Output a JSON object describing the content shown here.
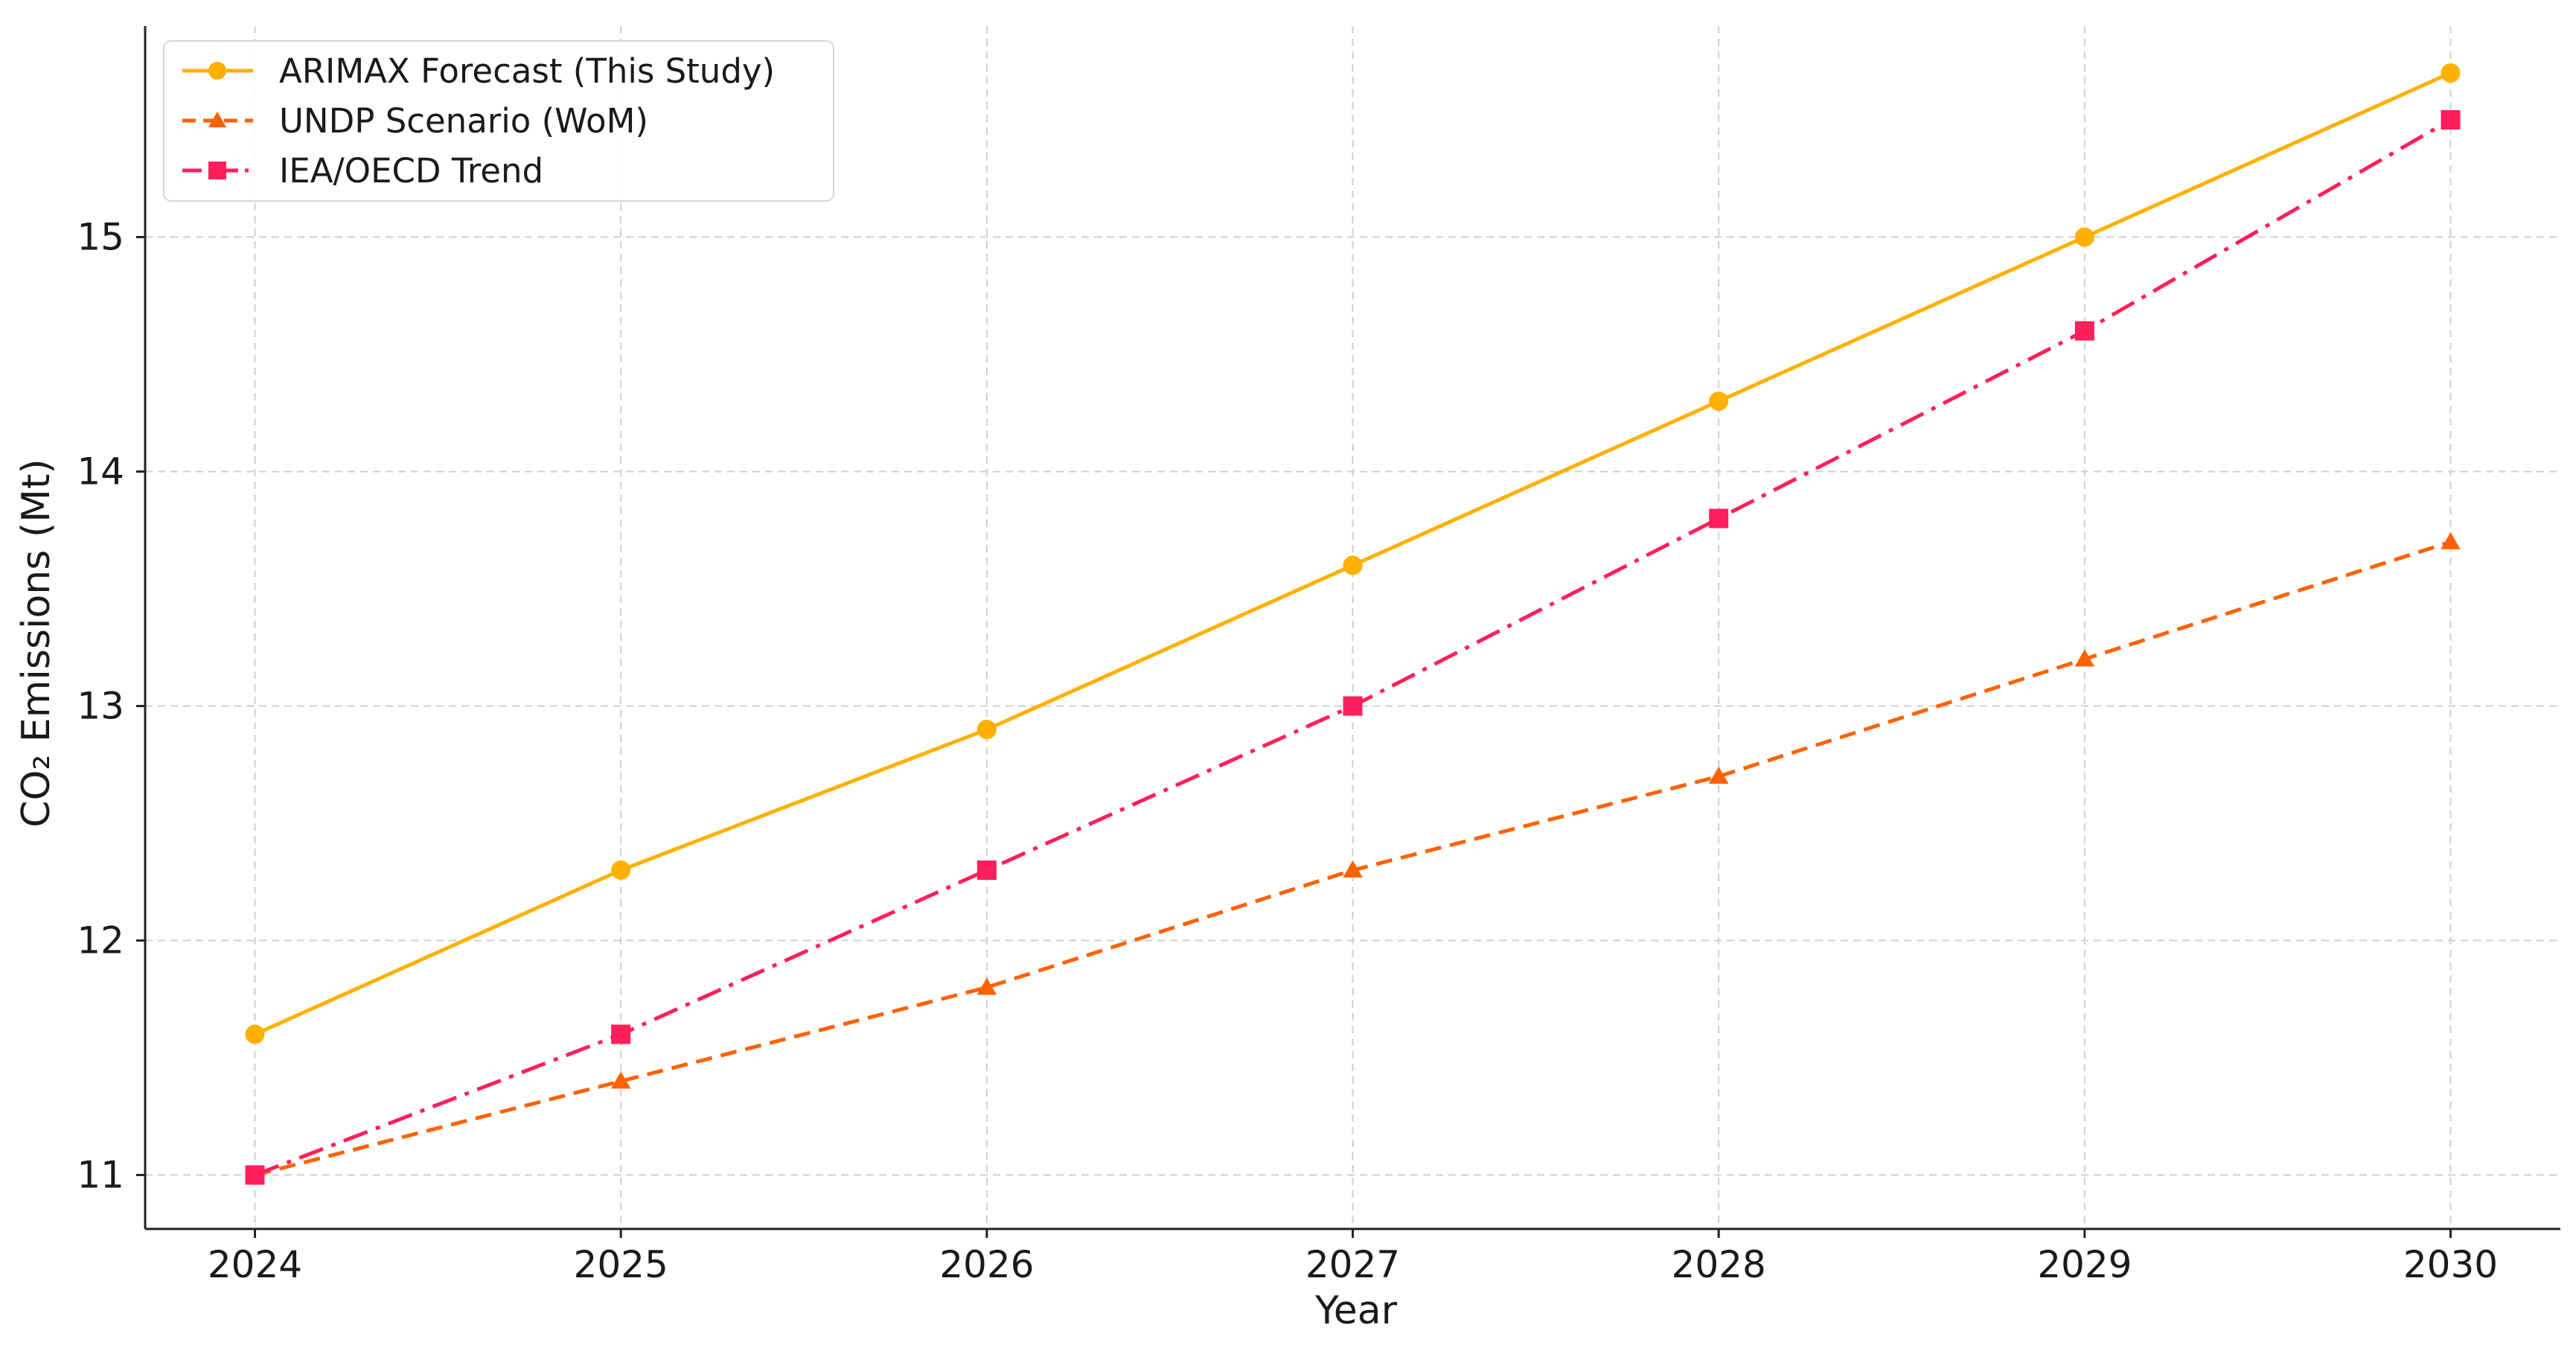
{
  "chart_data": {
    "type": "line",
    "title": "",
    "xlabel": "Year",
    "ylabel": "CO₂ Emissions (Mt)",
    "x": [
      2024,
      2025,
      2026,
      2027,
      2028,
      2029,
      2030
    ],
    "x_tick_labels": [
      "2024",
      "2025",
      "2026",
      "2027",
      "2028",
      "2029",
      "2030"
    ],
    "y_ticks": [
      11,
      12,
      13,
      14,
      15
    ],
    "y_tick_labels": [
      "11",
      "12",
      "13",
      "14",
      "15"
    ],
    "xlim": [
      2023.7,
      2030.3
    ],
    "ylim": [
      10.77,
      15.9
    ],
    "grid": true,
    "legend_position": "top-left",
    "series": [
      {
        "name": "ARIMAX Forecast (This Study)",
        "values": [
          11.6,
          12.3,
          12.9,
          13.6,
          14.3,
          15.0,
          15.7
        ],
        "color": "#FFB000",
        "line_style": "solid",
        "marker": "circle"
      },
      {
        "name": "UNDP Scenario (WoM)",
        "values": [
          11.0,
          11.4,
          11.8,
          12.3,
          12.7,
          13.2,
          13.7
        ],
        "color": "#FE6100",
        "line_style": "dashed",
        "marker": "triangle"
      },
      {
        "name": "IEA/OECD Trend",
        "values": [
          11.0,
          11.6,
          12.3,
          13.0,
          13.8,
          14.6,
          15.5
        ],
        "color": "#FF1F5B",
        "line_style": "dash-dot",
        "marker": "square"
      }
    ]
  }
}
